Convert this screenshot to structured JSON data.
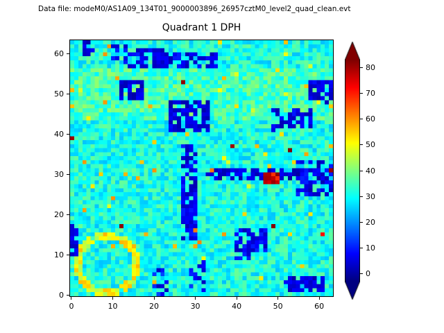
{
  "figure": {
    "annotation": "Data file: modeM0/AS1A09_134T01_9000003896_26957cztM0_level2_quad_clean.evt"
  },
  "chart_data": {
    "type": "heatmap",
    "title": "Quadrant 1 DPH",
    "xlabel": "",
    "ylabel": "",
    "x_ticks": [
      0,
      10,
      20,
      30,
      40,
      50,
      60
    ],
    "y_ticks": [
      0,
      10,
      20,
      30,
      40,
      50,
      60
    ],
    "grid_size": {
      "nx": 64,
      "ny": 64
    },
    "extent": [
      -0.5,
      63.5,
      -0.5,
      63.5
    ],
    "colormap": "jet",
    "clim": [
      -3,
      83
    ],
    "colorbar": {
      "ticks": [
        0,
        10,
        20,
        30,
        40,
        50,
        60,
        70,
        80
      ],
      "extend": "both",
      "over_color": "#800000",
      "under_color": "#000080"
    },
    "values_source": "estimated-from-pixels",
    "generator": {
      "seed": 42,
      "base": 31,
      "noise": 7,
      "tint_rows": [
        44,
        56
      ],
      "tint_add": 4,
      "speck_mid_p": 0.018,
      "speck_mid": [
        46,
        62
      ],
      "speck_high_p": 0.005,
      "speck_high": [
        70,
        86
      ],
      "features": [
        {
          "type": "ring",
          "cx": 8.5,
          "cy": 7.5,
          "r": 7.2,
          "w": 1.7,
          "value": 50,
          "jitter": 7,
          "p": 0.92
        },
        {
          "type": "rect",
          "x0": 0,
          "x1": 1,
          "y0": 10,
          "y1": 17,
          "value": 5,
          "jitter": 4,
          "p": 0.85
        },
        {
          "type": "rect",
          "x0": 27,
          "x1": 30,
          "y0": 14,
          "y1": 37,
          "value": 6,
          "jitter": 5,
          "p": 0.72
        },
        {
          "type": "rect",
          "x0": 24,
          "x1": 33,
          "y0": 41,
          "y1": 48,
          "value": 5,
          "jitter": 4,
          "p": 0.78
        },
        {
          "type": "rect",
          "x0": 12,
          "x1": 17,
          "y0": 49,
          "y1": 53,
          "value": 4,
          "jitter": 4,
          "p": 0.82
        },
        {
          "type": "rect",
          "x0": 33,
          "x1": 56,
          "y0": 29,
          "y1": 31,
          "value": 4,
          "jitter": 4,
          "p": 0.6
        },
        {
          "type": "rect",
          "x0": 13,
          "x1": 35,
          "y0": 57,
          "y1": 60,
          "value": 6,
          "jitter": 5,
          "p": 0.5
        },
        {
          "type": "rect",
          "x0": 16,
          "x1": 22,
          "y0": 57,
          "y1": 61,
          "value": 5,
          "jitter": 4,
          "p": 0.7
        },
        {
          "type": "rect",
          "x0": 49,
          "x1": 58,
          "y0": 41,
          "y1": 46,
          "value": 6,
          "jitter": 5,
          "p": 0.55
        },
        {
          "type": "rect",
          "x0": 58,
          "x1": 63,
          "y0": 48,
          "y1": 53,
          "value": 5,
          "jitter": 4,
          "p": 0.6
        },
        {
          "type": "rect",
          "x0": 55,
          "x1": 63,
          "y0": 25,
          "y1": 33,
          "value": 6,
          "jitter": 5,
          "p": 0.55
        },
        {
          "type": "rect",
          "x0": 40,
          "x1": 47,
          "y0": 9,
          "y1": 16,
          "value": 6,
          "jitter": 5,
          "p": 0.6
        },
        {
          "type": "rect",
          "x0": 52,
          "x1": 61,
          "y0": 1,
          "y1": 4,
          "value": 4,
          "jitter": 4,
          "p": 0.7
        },
        {
          "type": "rect",
          "x0": 20,
          "x1": 23,
          "y0": 0,
          "y1": 6,
          "value": 8,
          "jitter": 6,
          "p": 0.5
        },
        {
          "type": "rect",
          "x0": 29,
          "x1": 32,
          "y0": 1,
          "y1": 8,
          "value": 8,
          "jitter": 6,
          "p": 0.5
        },
        {
          "type": "rect",
          "x0": 3,
          "x1": 5,
          "y0": 60,
          "y1": 63,
          "value": 5,
          "jitter": 4,
          "p": 0.7
        },
        {
          "type": "rect",
          "x0": 10,
          "x1": 13,
          "y0": 59,
          "y1": 62,
          "value": 6,
          "jitter": 5,
          "p": 0.5
        },
        {
          "type": "rect",
          "x0": 47,
          "x1": 50,
          "y0": 28,
          "y1": 30,
          "value": 74,
          "jitter": 9,
          "p": 0.8
        }
      ]
    }
  },
  "colors": {
    "background": "#ffffff",
    "text": "#000000",
    "spine": "#000000"
  }
}
